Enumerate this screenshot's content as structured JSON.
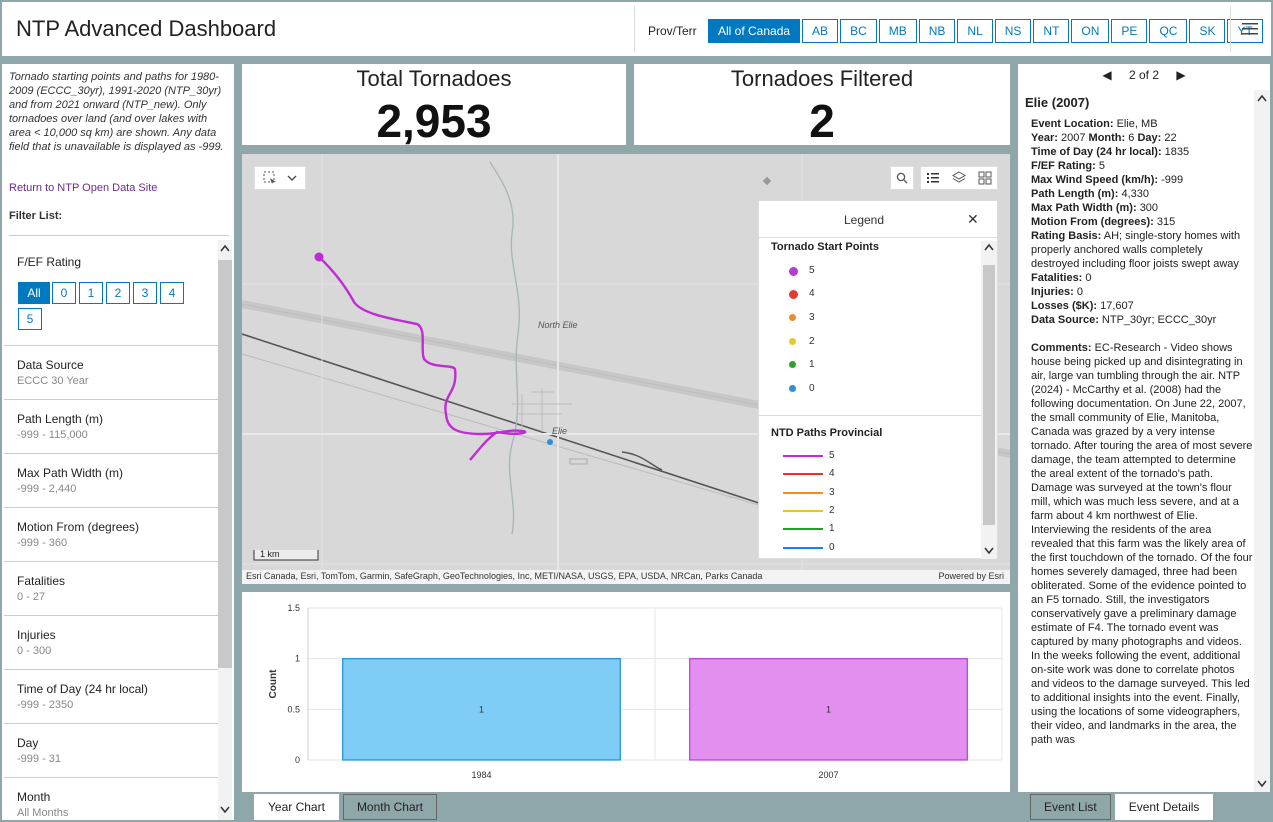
{
  "header": {
    "title": "NTP Advanced Dashboard",
    "prov_label": "Prov/Terr",
    "provinces": [
      "All of Canada",
      "AB",
      "BC",
      "MB",
      "NB",
      "NL",
      "NS",
      "NT",
      "ON",
      "PE",
      "QC",
      "SK",
      "YT"
    ],
    "selected_province": "All of Canada",
    "menu_icon": "hamburger-icon"
  },
  "left": {
    "intro": "Tornado starting points and paths for 1980-2009 (ECCC_30yr), 1991-2020 (NTP_30yr) and from 2021 onward (NTP_new).  Only tornadoes over land (and over lakes with area < 10,000 sq km) are shown. Any data field that is unavailable is displayed as -999.",
    "return_link": "Return to NTP Open Data Site",
    "filter_list_label": "Filter List:",
    "rating_filter": {
      "title": "F/EF Rating",
      "options": [
        "All",
        "0",
        "1",
        "2",
        "3",
        "4",
        "5"
      ],
      "selected": "All"
    },
    "filters": [
      {
        "title": "Data Source",
        "value": "ECCC 30 Year"
      },
      {
        "title": "Path Length (m)",
        "value": "-999 - 115,000"
      },
      {
        "title": "Max Path Width (m)",
        "value": "-999 - 2,440"
      },
      {
        "title": "Motion From (degrees)",
        "value": "-999 - 360"
      },
      {
        "title": "Fatalities",
        "value": "0 - 27"
      },
      {
        "title": "Injuries",
        "value": "0 - 300"
      },
      {
        "title": "Time of Day (24 hr local)",
        "value": "-999 - 2350"
      },
      {
        "title": "Day",
        "value": "-999 - 31"
      },
      {
        "title": "Month",
        "value": "All Months"
      }
    ]
  },
  "stats": {
    "total_title": "Total Tornadoes",
    "total_value": "2,953",
    "filtered_title": "Tornadoes Filtered",
    "filtered_value": "2"
  },
  "map": {
    "labels": {
      "north_elie": "North Elie",
      "elie": "Elie"
    },
    "scale": "1 km",
    "attribution": "Esri Canada, Esri, TomTom, Garmin, SafeGraph, GeoTechnologies, Inc, METI/NASA, USGS, EPA, USDA, NRCan, Parks Canada",
    "powered_by": "Powered by Esri",
    "colors": {
      "path": "#c02cd4",
      "start_point": "#c02cd4",
      "background": "#d8d8d8"
    }
  },
  "legend": {
    "title": "Legend",
    "points_heading": "Tornado Start Points",
    "points": [
      {
        "label": "5",
        "color": "#b43cd8"
      },
      {
        "label": "4",
        "color": "#e53a2e"
      },
      {
        "label": "3",
        "color": "#f08a24"
      },
      {
        "label": "2",
        "color": "#e2cc1f"
      },
      {
        "label": "1",
        "color": "#2aa52a"
      },
      {
        "label": "0",
        "color": "#2a8fe0"
      }
    ],
    "paths_heading": "NTD Paths Provincial",
    "paths": [
      {
        "label": "5",
        "color": "#c02cd4"
      },
      {
        "label": "4",
        "color": "#e8341f"
      },
      {
        "label": "3",
        "color": "#f58a1f"
      },
      {
        "label": "2",
        "color": "#e6c81a"
      },
      {
        "label": "1",
        "color": "#1fa31f"
      },
      {
        "label": "0",
        "color": "#1a86e0"
      }
    ]
  },
  "chart_data": {
    "type": "bar",
    "categories": [
      "1984",
      "2007"
    ],
    "values": [
      1,
      1
    ],
    "bar_labels": [
      "1",
      "1"
    ],
    "colors": [
      "#7fcdf6",
      "#e28ff0"
    ],
    "xlabel": "",
    "ylabel": "Count",
    "ylim": [
      0,
      1.5
    ],
    "yticks": [
      "0",
      "0.5",
      "1",
      "1.5"
    ]
  },
  "chart_tabs": [
    "Year Chart",
    "Month Chart"
  ],
  "right": {
    "pager": "2 of 2",
    "title": "Elie (2007)",
    "details": [
      {
        "k": "Event Location:",
        "v": "Elie, MB"
      },
      {
        "k": "Year:",
        "v": "2007"
      },
      {
        "k": "Month:",
        "v": "6"
      },
      {
        "k": "Day:",
        "v": "22"
      },
      {
        "k": "Time of Day (24 hr local):",
        "v": "1835"
      },
      {
        "k": "F/EF Rating:",
        "v": "5"
      },
      {
        "k": "Max Wind Speed (km/h):",
        "v": "-999"
      },
      {
        "k": "Path Length (m):",
        "v": "4,330"
      },
      {
        "k": "Max Path Width (m):",
        "v": "300"
      },
      {
        "k": "Motion From (degrees):",
        "v": "315"
      },
      {
        "k": "Rating Basis:",
        "v": "AH; single-story homes with properly anchored walls completely destroyed including floor joists swept away"
      },
      {
        "k": "Fatalities:",
        "v": "0"
      },
      {
        "k": "Injuries:",
        "v": "0"
      },
      {
        "k": "Losses ($K):",
        "v": "17,607"
      },
      {
        "k": "Data Source:",
        "v": "NTP_30yr; ECCC_30yr"
      }
    ],
    "comments_label": "Comments:",
    "comments": "EC-Research - Video shows house being picked up and disintegrating in air, large van tumbling through the air. NTP (2024) - McCarthy et al. (2008) had the following documentation. On June 22, 2007, the small community of Elie, Manitoba, Canada was grazed by a very intense tornado. After touring the area of most severe damage, the team attempted to determine the areal extent of the tornado's path. Damage was surveyed at the town's flour mill, which was much less severe, and at a farm about 4 km northwest of Elie. Interviewing the residents of the area revealed that this farm was the likely area of the first touchdown of the tornado. Of the four homes severely damaged, three had been obliterated. Some of the evidence pointed to an F5 tornado. Still, the investigators conservatively gave a preliminary damage estimate of F4. The tornado event was captured by many photographs and videos. In the weeks following the event, additional on-site work was done to correlate photos and videos to the damage surveyed. This led to additional insights into the event. Finally, using the locations of some videographers, their video, and landmarks in the area, the path was",
    "tabs": [
      "Event List",
      "Event Details"
    ]
  }
}
